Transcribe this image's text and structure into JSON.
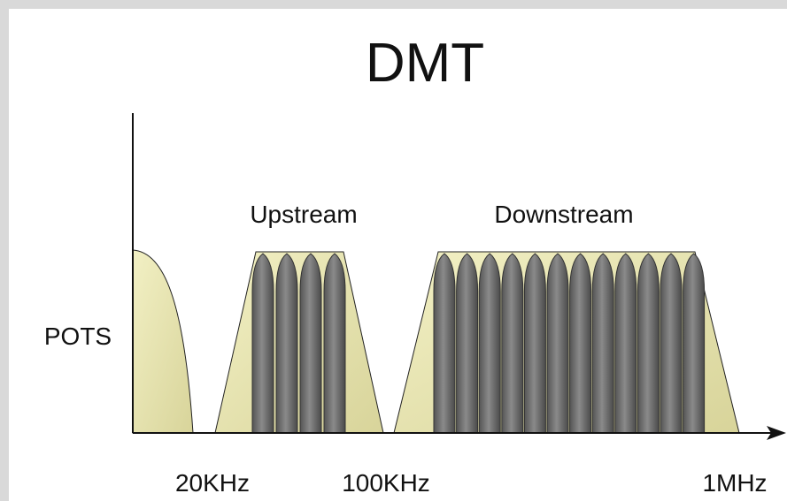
{
  "title": "DMT",
  "bands": {
    "upstream": "Upstream",
    "downstream": "Downstream"
  },
  "pots": "POTS",
  "frequencies": [
    "20KHz",
    "100KHz",
    "1MHz"
  ]
}
